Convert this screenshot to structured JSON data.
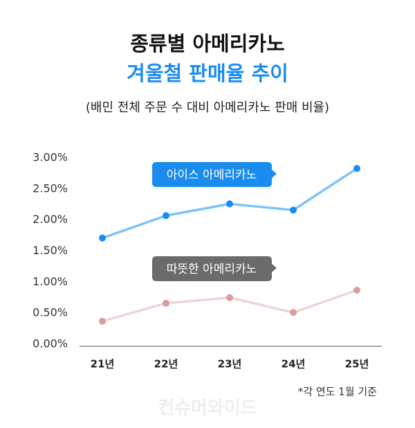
{
  "chart_data": {
    "type": "line",
    "title": "종류별 아메리카노",
    "subtitle": "겨울철 판매율 추이",
    "description": "(배민 전체 주문 수 대비 아메리카노 판매 비율)",
    "note": "*각 연도 1월 기준",
    "watermark": "컨슈머와이드",
    "categories": [
      "21년",
      "22년",
      "23년",
      "24년",
      "25년"
    ],
    "series": [
      {
        "name": "아이스 아메리카노",
        "color": "#1a8cf0",
        "line_color": "#7cc4f5",
        "values": [
          1.71,
          2.07,
          2.26,
          2.16,
          2.83
        ]
      },
      {
        "name": "따뜻한 아메리카노",
        "color": "#6b6b6b",
        "line_color": "#ead6d6",
        "marker_color": "#dc9c9e",
        "values": [
          0.37,
          0.66,
          0.75,
          0.51,
          0.87
        ]
      }
    ],
    "ylim": [
      0,
      3
    ],
    "yticks": [
      {
        "value": 0,
        "label": "0.00%"
      },
      {
        "value": 0.5,
        "label": "0.50%"
      },
      {
        "value": 1,
        "label": "1.00%"
      },
      {
        "value": 1.5,
        "label": "1.50%"
      },
      {
        "value": 2,
        "label": "2.00%"
      },
      {
        "value": 2.5,
        "label": "2.50%"
      },
      {
        "value": 3,
        "label": "3.00%"
      }
    ],
    "grid": false
  }
}
